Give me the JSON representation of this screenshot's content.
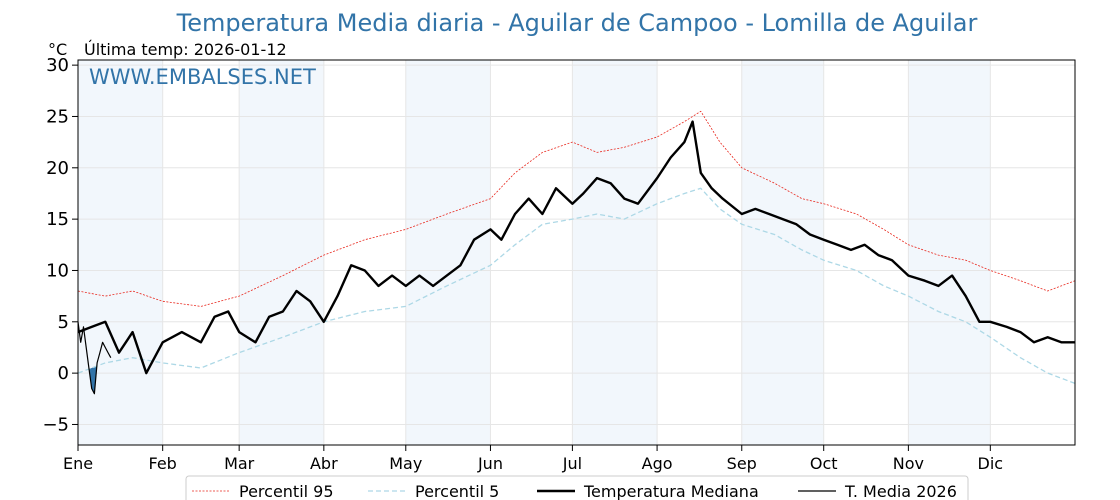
{
  "chart_data": {
    "type": "line",
    "title": "Temperatura Media diaria - Aguilar de Campoo - Lomilla de Aguilar",
    "unit_label": "°C",
    "last_temp_label": "Última temp: 2026-01-12",
    "watermark": "WWW.EMBALSES.NET",
    "x_tick_labels": [
      "Ene",
      "Feb",
      "Mar",
      "Abr",
      "May",
      "Jun",
      "Jul",
      "Ago",
      "Sep",
      "Oct",
      "Nov",
      "Dic"
    ],
    "x_tick_days": [
      0,
      31,
      59,
      90,
      120,
      151,
      181,
      212,
      243,
      273,
      304,
      334
    ],
    "xlim": [
      0,
      365
    ],
    "ylim": [
      -7,
      30.5
    ],
    "y_ticks": [
      -5,
      0,
      5,
      10,
      15,
      20,
      25,
      30
    ],
    "y_tick_labels": [
      "−5",
      "0",
      "5",
      "10",
      "15",
      "20",
      "25",
      "30"
    ],
    "grid": true,
    "legend_position": "bottom",
    "shaded_months": [
      0,
      2,
      4,
      6,
      8,
      10
    ],
    "colors": {
      "p95": "#e8281e",
      "p5": "#add8e6",
      "median": "#000000",
      "current": "#000000",
      "fill": "#3274a8",
      "title": "#3274a8",
      "shade": "#f2f7fc"
    },
    "series": [
      {
        "name": "Percentil 95",
        "style": "dotted-red",
        "x": [
          0,
          10,
          20,
          31,
          45,
          59,
          75,
          90,
          105,
          120,
          135,
          151,
          160,
          170,
          181,
          190,
          200,
          212,
          222,
          228,
          235,
          243,
          255,
          265,
          273,
          285,
          295,
          304,
          315,
          325,
          334,
          345,
          355,
          365
        ],
        "y": [
          8,
          7.5,
          8,
          7,
          6.5,
          7.5,
          9.5,
          11.5,
          13,
          14,
          15.5,
          17,
          19.5,
          21.5,
          22.5,
          21.5,
          22,
          23,
          24.5,
          25.5,
          22.5,
          20,
          18.5,
          17,
          16.5,
          15.5,
          14,
          12.5,
          11.5,
          11,
          10,
          9,
          8,
          9
        ]
      },
      {
        "name": "Percentil 5",
        "style": "dashed-lightblue",
        "x": [
          0,
          10,
          20,
          31,
          45,
          59,
          75,
          90,
          105,
          120,
          135,
          151,
          160,
          170,
          181,
          190,
          200,
          212,
          222,
          228,
          235,
          243,
          255,
          265,
          273,
          285,
          295,
          304,
          315,
          325,
          334,
          345,
          355,
          365
        ],
        "y": [
          0,
          1,
          1.5,
          1,
          0.5,
          2,
          3.5,
          5,
          6,
          6.5,
          8.5,
          10.5,
          12.5,
          14.5,
          15,
          15.5,
          15,
          16.5,
          17.5,
          18,
          16,
          14.5,
          13.5,
          12,
          11,
          10,
          8.5,
          7.5,
          6,
          5,
          3.5,
          1.5,
          0,
          -1
        ]
      },
      {
        "name": "Temperatura Mediana",
        "style": "thick-black",
        "x": [
          0,
          5,
          10,
          15,
          20,
          25,
          31,
          38,
          45,
          50,
          55,
          59,
          65,
          70,
          75,
          80,
          85,
          90,
          95,
          100,
          105,
          110,
          115,
          120,
          125,
          130,
          135,
          140,
          145,
          151,
          155,
          160,
          165,
          170,
          175,
          181,
          185,
          190,
          195,
          200,
          205,
          212,
          217,
          222,
          225,
          228,
          232,
          236,
          243,
          248,
          253,
          258,
          263,
          268,
          273,
          278,
          283,
          288,
          293,
          298,
          304,
          310,
          315,
          320,
          325,
          330,
          334,
          340,
          345,
          350,
          355,
          360,
          365
        ],
        "y": [
          4,
          4.5,
          5,
          2,
          4,
          0,
          3,
          4,
          3,
          5.5,
          6,
          4,
          3,
          5.5,
          6,
          8,
          7,
          5,
          7.5,
          10.5,
          10,
          8.5,
          9.5,
          8.5,
          9.5,
          8.5,
          9.5,
          10.5,
          13,
          14,
          13,
          15.5,
          17,
          15.5,
          18,
          16.5,
          17.5,
          19,
          18.5,
          17,
          16.5,
          19,
          21,
          22.5,
          24.5,
          19.5,
          18,
          17,
          15.5,
          16,
          15.5,
          15,
          14.5,
          13.5,
          13,
          12.5,
          12,
          12.5,
          11.5,
          11,
          9.5,
          9,
          8.5,
          9.5,
          7.5,
          5,
          5,
          4.5,
          4,
          3,
          3.5,
          3,
          3
        ]
      },
      {
        "name": "T. Media 2026",
        "style": "thin-black",
        "x": [
          0,
          1,
          2,
          3,
          4,
          5,
          6,
          7,
          8,
          9,
          10,
          11,
          12
        ],
        "y": [
          5,
          3,
          4.5,
          2.5,
          0.5,
          -1.5,
          -2,
          1,
          2,
          3,
          2.5,
          2,
          1.5
        ]
      }
    ]
  }
}
